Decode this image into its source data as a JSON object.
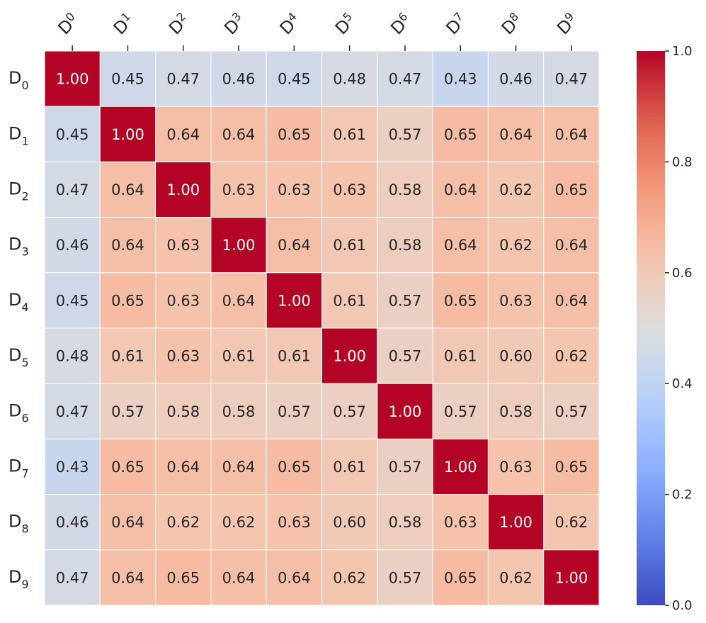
{
  "chart_data": {
    "type": "heatmap",
    "x_tick_labels": [
      {
        "base": "D",
        "sub": "0"
      },
      {
        "base": "D",
        "sub": "1"
      },
      {
        "base": "D",
        "sub": "2"
      },
      {
        "base": "D",
        "sub": "3"
      },
      {
        "base": "D",
        "sub": "4"
      },
      {
        "base": "D",
        "sub": "5"
      },
      {
        "base": "D",
        "sub": "6"
      },
      {
        "base": "D",
        "sub": "7"
      },
      {
        "base": "D",
        "sub": "8"
      },
      {
        "base": "D",
        "sub": "9"
      }
    ],
    "y_tick_labels": [
      {
        "base": "D",
        "sub": "0"
      },
      {
        "base": "D",
        "sub": "1"
      },
      {
        "base": "D",
        "sub": "2"
      },
      {
        "base": "D",
        "sub": "3"
      },
      {
        "base": "D",
        "sub": "4"
      },
      {
        "base": "D",
        "sub": "5"
      },
      {
        "base": "D",
        "sub": "6"
      },
      {
        "base": "D",
        "sub": "7"
      },
      {
        "base": "D",
        "sub": "8"
      },
      {
        "base": "D",
        "sub": "9"
      }
    ],
    "values": [
      [
        1.0,
        0.45,
        0.47,
        0.46,
        0.45,
        0.48,
        0.47,
        0.43,
        0.46,
        0.47
      ],
      [
        0.45,
        1.0,
        0.64,
        0.64,
        0.65,
        0.61,
        0.57,
        0.65,
        0.64,
        0.64
      ],
      [
        0.47,
        0.64,
        1.0,
        0.63,
        0.63,
        0.63,
        0.58,
        0.64,
        0.62,
        0.65
      ],
      [
        0.46,
        0.64,
        0.63,
        1.0,
        0.64,
        0.61,
        0.58,
        0.64,
        0.62,
        0.64
      ],
      [
        0.45,
        0.65,
        0.63,
        0.64,
        1.0,
        0.61,
        0.57,
        0.65,
        0.63,
        0.64
      ],
      [
        0.48,
        0.61,
        0.63,
        0.61,
        0.61,
        1.0,
        0.57,
        0.61,
        0.6,
        0.62
      ],
      [
        0.47,
        0.57,
        0.58,
        0.58,
        0.57,
        0.57,
        1.0,
        0.57,
        0.58,
        0.57
      ],
      [
        0.43,
        0.65,
        0.64,
        0.64,
        0.65,
        0.61,
        0.57,
        1.0,
        0.63,
        0.65
      ],
      [
        0.46,
        0.64,
        0.62,
        0.62,
        0.63,
        0.6,
        0.58,
        0.63,
        1.0,
        0.62
      ],
      [
        0.47,
        0.64,
        0.65,
        0.64,
        0.64,
        0.62,
        0.57,
        0.65,
        0.62,
        1.0
      ]
    ],
    "value_format": "0.00",
    "colormap": "coolwarm",
    "color_range": [
      0.0,
      1.0
    ],
    "colorbar_ticks": [
      "0.0",
      "0.2",
      "0.4",
      "0.6",
      "0.8",
      "1.0"
    ],
    "colorbar_tick_values": [
      0.0,
      0.2,
      0.4,
      0.6,
      0.8,
      1.0
    ],
    "x_tick_position": "top",
    "x_tick_rotation_deg": -45,
    "cell_border_color": "#ffffff",
    "annotation_dark_text_color": "#262626",
    "annotation_light_text_color": "#ffffff"
  }
}
